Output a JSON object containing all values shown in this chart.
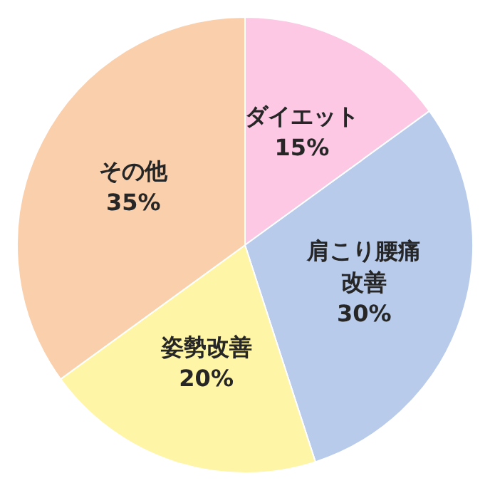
{
  "chart_data": {
    "type": "pie",
    "categories": [
      "ダイエット",
      "肩こり腰痛改善",
      "姿勢改善",
      "その他"
    ],
    "values": [
      15,
      30,
      20,
      35
    ],
    "colors": [
      "#fcc8e4",
      "#b9cbeb",
      "#fff5a6",
      "#f9cfac"
    ],
    "value_labels": [
      "15%",
      "30%",
      "20%",
      "35%"
    ]
  }
}
